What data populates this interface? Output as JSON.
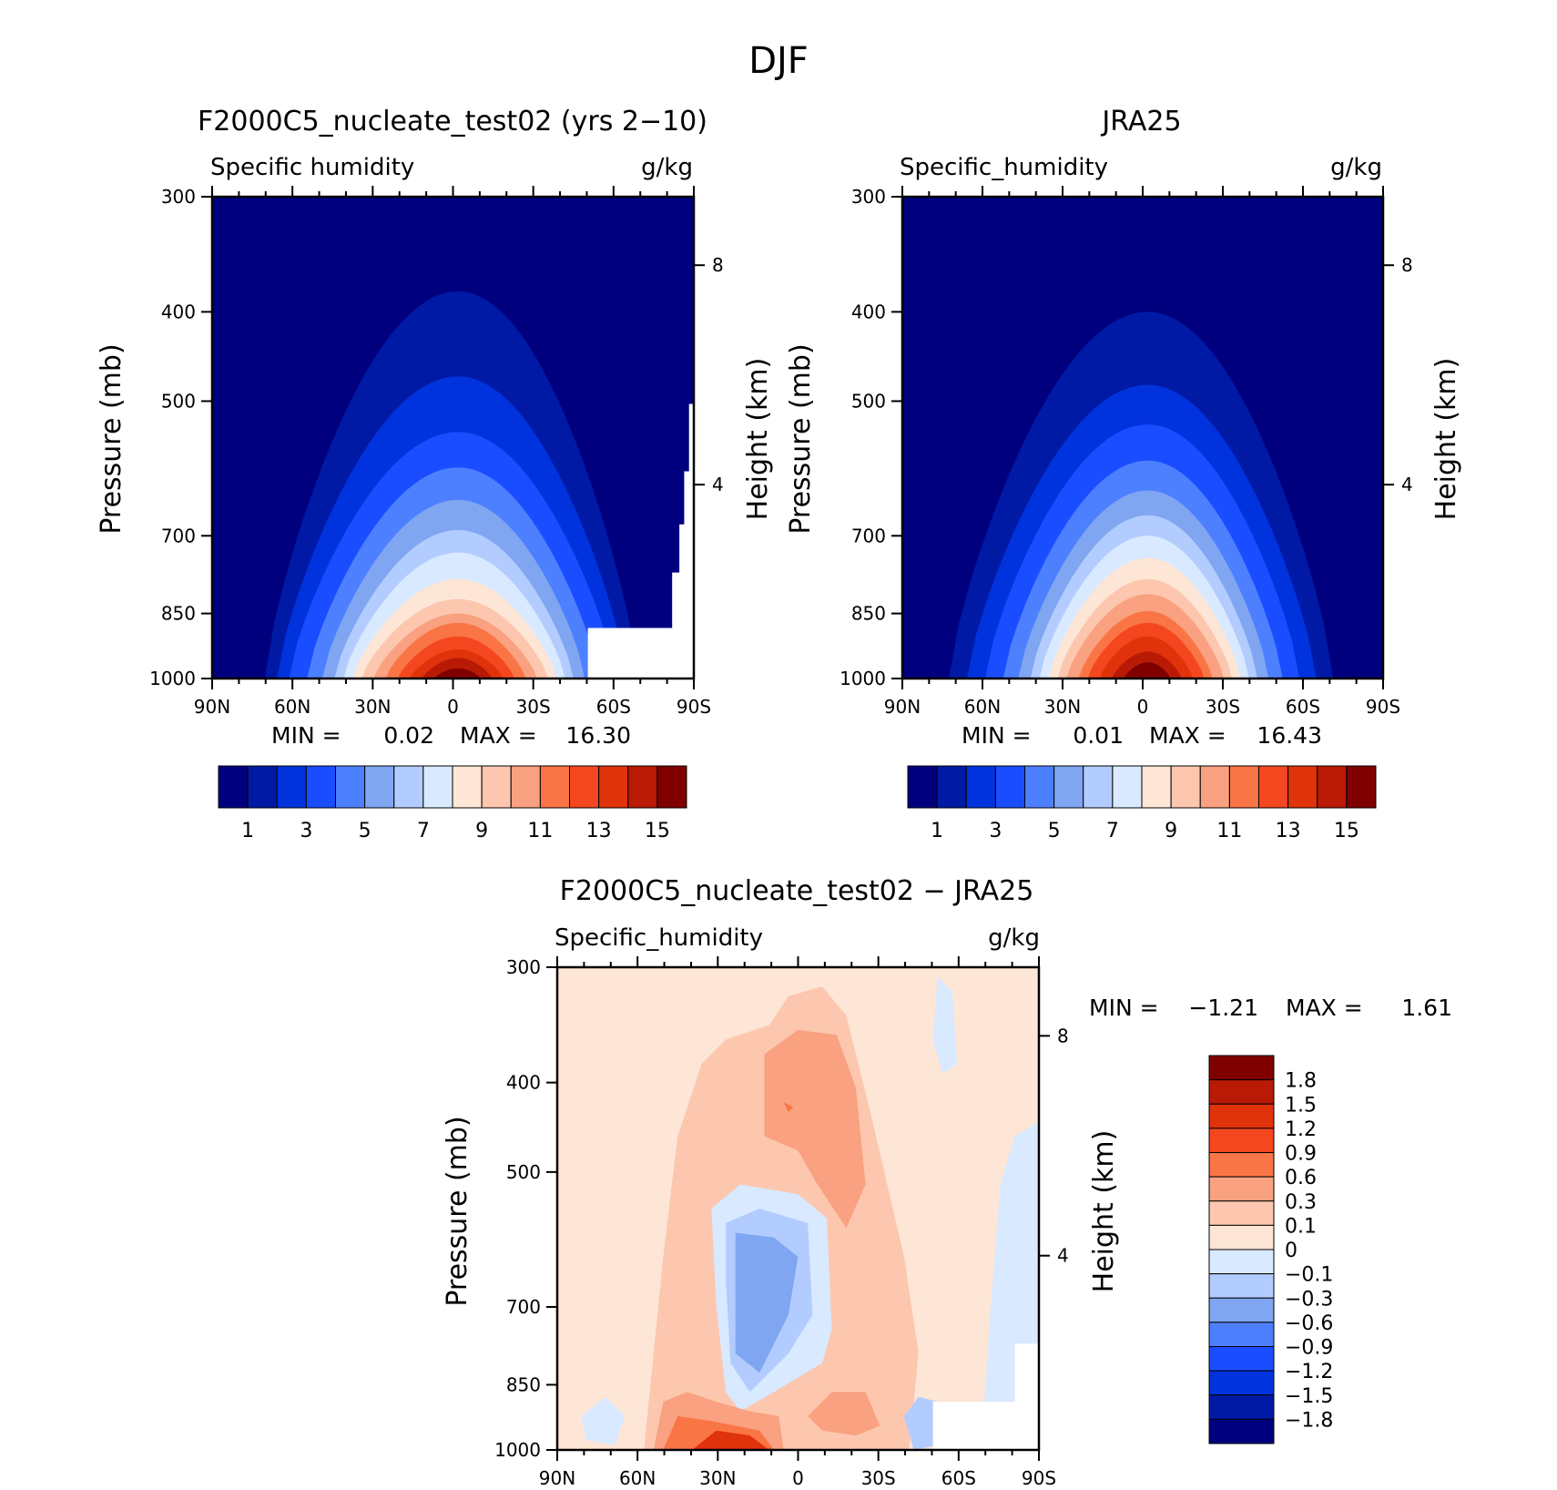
{
  "figure_title": "DJF",
  "chart_data": [
    {
      "type": "heatmap",
      "title": "F2000C5_nucleate_test02 (yrs 2−10)",
      "left_string": "Specific humidity",
      "right_string": "g/kg",
      "xlabel": "",
      "ylabel": "Pressure (mb)",
      "y2label": "Height (km)",
      "x_ticks": [
        "90N",
        "60N",
        "30N",
        "0",
        "30S",
        "60S",
        "90S"
      ],
      "y_ticks": [
        300,
        400,
        500,
        700,
        850,
        1000
      ],
      "y2_ticks": [
        8,
        4
      ],
      "xlim": [
        "90N",
        "90S"
      ],
      "ylim": [
        1000,
        300
      ],
      "min_max_text": {
        "min_label": "MIN =",
        "min": "0.02",
        "max_label": "MAX =",
        "max": "16.30"
      },
      "colorbar": {
        "levels": [
          1,
          2,
          3,
          4,
          5,
          6,
          7,
          8,
          9,
          10,
          11,
          12,
          13,
          14,
          15
        ],
        "tick_labels": [
          "1",
          "3",
          "5",
          "7",
          "9",
          "11",
          "13",
          "15"
        ],
        "colors": [
          "#00007f",
          "#001aa6",
          "#0033dd",
          "#1a4dff",
          "#4d80ff",
          "#80a6f2",
          "#b3ccff",
          "#d9e9ff",
          "#fde6d6",
          "#fcc7ae",
          "#f9a180",
          "#fa7545",
          "#f5471f",
          "#e0330c",
          "#b91a06",
          "#800000"
        ]
      },
      "peak": {
        "lat": -2,
        "value": 16.3
      },
      "widths_at_1000mb": [
        64,
        60,
        56,
        50,
        45,
        41,
        38,
        35,
        32,
        28,
        24,
        20,
        16,
        12,
        8
      ],
      "heights_hpa": [
        380,
        470,
        540,
        590,
        640,
        690,
        730,
        780,
        820,
        850,
        870,
        900,
        930,
        950,
        975
      ]
    },
    {
      "type": "heatmap",
      "title": "JRA25",
      "left_string": "Specific_humidity",
      "right_string": "g/kg",
      "xlabel": "",
      "ylabel": "Pressure (mb)",
      "y2label": "Height (km)",
      "x_ticks": [
        "90N",
        "60N",
        "30N",
        "0",
        "30S",
        "60S",
        "90S"
      ],
      "y_ticks": [
        300,
        400,
        500,
        700,
        850,
        1000
      ],
      "y2_ticks": [
        8,
        4
      ],
      "xlim": [
        "90N",
        "90S"
      ],
      "ylim": [
        1000,
        300
      ],
      "min_max_text": {
        "min_label": "MIN =",
        "min": "0.01",
        "max_label": "MAX =",
        "max": "16.43"
      },
      "colorbar": {
        "levels": [
          1,
          2,
          3,
          4,
          5,
          6,
          7,
          8,
          9,
          10,
          11,
          12,
          13,
          14,
          15
        ],
        "tick_labels": [
          "1",
          "3",
          "5",
          "7",
          "9",
          "11",
          "13",
          "15"
        ],
        "colors": [
          "#00007f",
          "#001aa6",
          "#0033dd",
          "#1a4dff",
          "#4d80ff",
          "#80a6f2",
          "#b3ccff",
          "#d9e9ff",
          "#fde6d6",
          "#fcc7ae",
          "#f9a180",
          "#fa7545",
          "#f5471f",
          "#e0330c",
          "#b91a06",
          "#800000"
        ]
      },
      "peak": {
        "lat": -2,
        "value": 16.43
      },
      "widths_at_1000mb": [
        66,
        60,
        54,
        48,
        43,
        39,
        36,
        33,
        30,
        27,
        23,
        20,
        16,
        12,
        8
      ],
      "heights_hpa": [
        400,
        480,
        530,
        580,
        625,
        665,
        700,
        740,
        780,
        810,
        845,
        870,
        900,
        935,
        960
      ]
    },
    {
      "type": "heatmap",
      "title": "F2000C5_nucleate_test02 − JRA25",
      "left_string": "Specific_humidity",
      "right_string": "g/kg",
      "xlabel": "",
      "ylabel": "Pressure (mb)",
      "y2label": "Height (km)",
      "x_ticks": [
        "90N",
        "60N",
        "30N",
        "0",
        "30S",
        "60S",
        "90S"
      ],
      "y_ticks": [
        300,
        400,
        500,
        700,
        850,
        1000
      ],
      "y2_ticks": [
        8,
        4
      ],
      "xlim": [
        "90N",
        "90S"
      ],
      "ylim": [
        1000,
        300
      ],
      "min_max_text": {
        "min_label": "MIN =",
        "min": "−1.21",
        "max_label": "MAX =",
        "max": "1.61"
      },
      "colorbar": {
        "levels": [
          1.8,
          1.5,
          1.2,
          0.9,
          0.6,
          0.3,
          0.1,
          0,
          -0.1,
          -0.3,
          -0.6,
          -0.9,
          -1.2,
          -1.5,
          -1.8
        ],
        "tick_labels": [
          "1.8",
          "1.5",
          "1.2",
          "0.9",
          "0.6",
          "0.3",
          "0.1",
          "0",
          "−0.1",
          "−0.3",
          "−0.6",
          "−0.9",
          "−1.2",
          "−1.5",
          "−1.8"
        ],
        "colors": [
          "#800000",
          "#b91a06",
          "#e0330c",
          "#f5471f",
          "#fa7545",
          "#f9a180",
          "#fcc7ae",
          "#fde6d6",
          "#d9e9ff",
          "#b3ccff",
          "#80a6f2",
          "#4d80ff",
          "#1a4dff",
          "#0033dd",
          "#001aa6",
          "#00007f"
        ]
      }
    }
  ]
}
